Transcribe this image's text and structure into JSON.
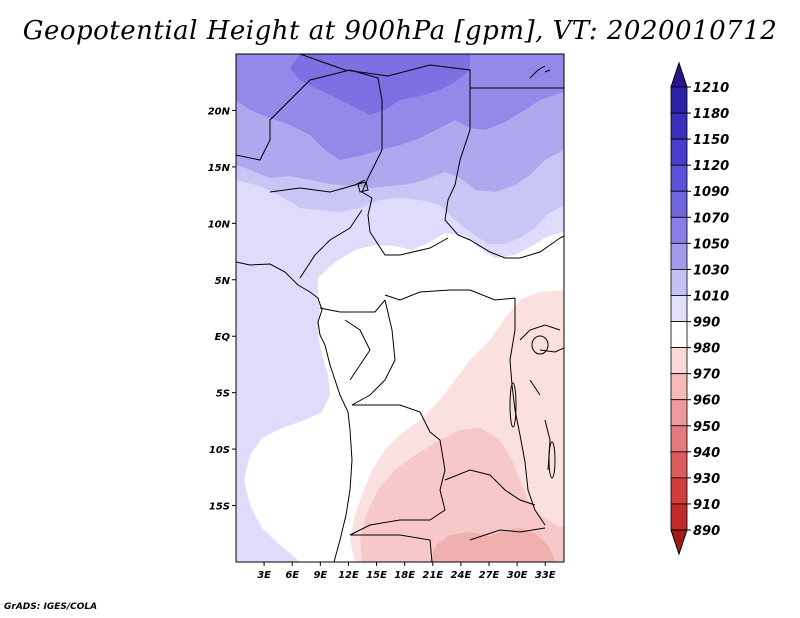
{
  "title": "Geopotential Height at 900hPa [gpm], VT: 2020010712",
  "footer": "GrADS: IGES/COLA",
  "map": {
    "lat_labels": [
      "20N",
      "15N",
      "10N",
      "5N",
      "EQ",
      "5S",
      "10S",
      "15S"
    ],
    "lon_labels": [
      "3E",
      "6E",
      "9E",
      "12E",
      "15E",
      "18E",
      "21E",
      "24E",
      "27E",
      "30E",
      "33E"
    ],
    "lat_values": [
      20,
      15,
      10,
      5,
      0,
      -5,
      -10,
      -15
    ],
    "lon_values": [
      3,
      6,
      9,
      12,
      15,
      18,
      21,
      24,
      27,
      30,
      33
    ],
    "lon_range": [
      0,
      35
    ],
    "lat_range": [
      -20,
      25
    ]
  },
  "colorbar": {
    "labels": [
      "1210",
      "1180",
      "1150",
      "1120",
      "1090",
      "1070",
      "1050",
      "1030",
      "1010",
      "990",
      "980",
      "970",
      "960",
      "950",
      "940",
      "930",
      "910",
      "890"
    ],
    "colors": [
      "#29158f",
      "#2d1fa8",
      "#3b2dbd",
      "#4a3ccd",
      "#5d51d9",
      "#7165de",
      "#8a7fe6",
      "#a39ced",
      "#c5c1f4",
      "#e2e0fb",
      "#ffffff",
      "#fbd9d9",
      "#f5b9b9",
      "#ee9a9a",
      "#e57b7b",
      "#dc5c5c",
      "#cf3d3d",
      "#c02a2a",
      "#a51818"
    ]
  },
  "field_colors": {
    "v1090": "#7d70e3",
    "v1070": "#9488e9",
    "v1050": "#b0a8ef",
    "v1030": "#c9c5f5",
    "v1010": "#dedcfa",
    "v990": "#ffffff",
    "v980": "#fbe0e0",
    "v970": "#f6c8c8",
    "v960": "#f0b0b0",
    "coast": "#000000"
  }
}
